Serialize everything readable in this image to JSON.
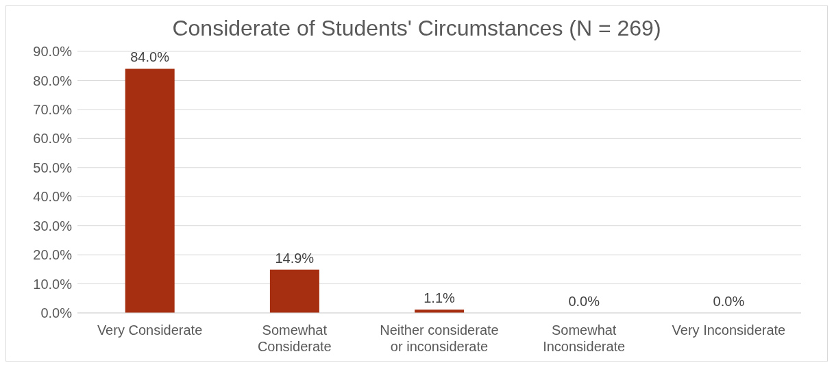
{
  "chart_data": {
    "type": "bar",
    "title": "Considerate of Students' Circumstances (N = 269)",
    "categories": [
      "Very Considerate",
      "Somewhat Considerate",
      "Neither considerate or inconsiderate",
      "Somewhat Inconsiderate",
      "Very Inconsiderate"
    ],
    "values": [
      84.0,
      14.9,
      1.1,
      0.0,
      0.0
    ],
    "value_labels": [
      "84.0%",
      "14.9%",
      "1.1%",
      "0.0%",
      "0.0%"
    ],
    "color": "#a52f10",
    "ylim": [
      0,
      90
    ],
    "yticks": [
      {
        "value": 0,
        "label": "0.0%"
      },
      {
        "value": 10,
        "label": "10.0%"
      },
      {
        "value": 20,
        "label": "20.0%"
      },
      {
        "value": 30,
        "label": "30.0%"
      },
      {
        "value": 40,
        "label": "40.0%"
      },
      {
        "value": 50,
        "label": "50.0%"
      },
      {
        "value": 60,
        "label": "60.0%"
      },
      {
        "value": 70,
        "label": "70.0%"
      },
      {
        "value": 80,
        "label": "80.0%"
      },
      {
        "value": 90,
        "label": "90.0%"
      }
    ],
    "grid": "y"
  }
}
